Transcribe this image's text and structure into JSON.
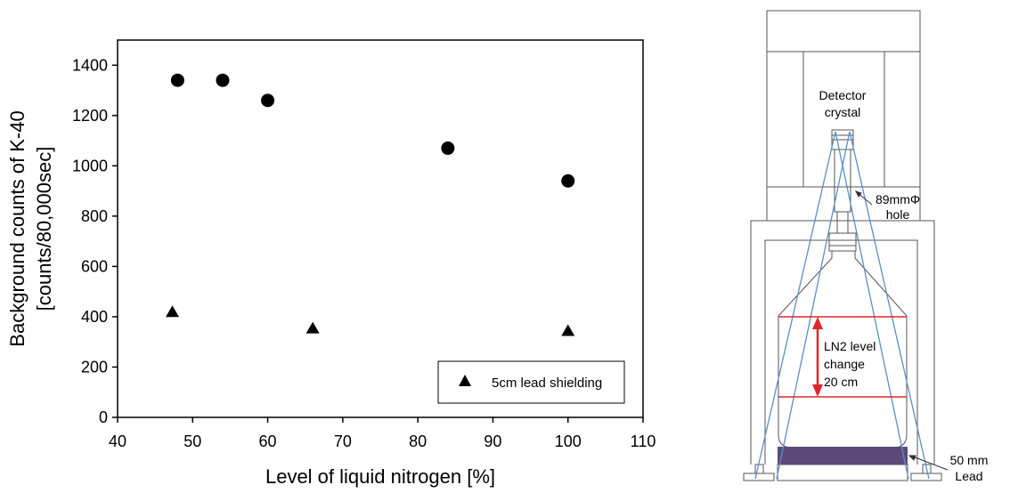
{
  "chart_data": {
    "type": "scatter",
    "xlabel": "Level of liquid nitrogen [%]",
    "ylabel_lines": [
      "Background counts of K-40",
      "[counts/80,000sec]"
    ],
    "xlim": [
      40,
      110
    ],
    "ylim": [
      0,
      1500
    ],
    "xticks": [
      40,
      50,
      60,
      70,
      80,
      90,
      100,
      110
    ],
    "yticks": [
      0,
      200,
      400,
      600,
      800,
      1000,
      1200,
      1400
    ],
    "grid": false,
    "legend_position": "bottom-right",
    "series": [
      {
        "marker": "circle",
        "x": [
          48,
          54,
          60,
          84,
          100
        ],
        "y": [
          1340,
          1340,
          1260,
          1070,
          940
        ]
      },
      {
        "name": "5cm lead shielding",
        "marker": "triangle",
        "x": [
          47.3,
          66,
          100
        ],
        "y": [
          420,
          355,
          345
        ]
      }
    ]
  },
  "diagram": {
    "detector_label_lines": [
      "Detector",
      "crystal"
    ],
    "hole_label_lines": [
      "89mmΦ",
      "hole"
    ],
    "ln2_label_lines": [
      "LN2 level",
      "change",
      "20 cm"
    ],
    "lead_label_lines": [
      "50 mm",
      "Lead"
    ],
    "colors": {
      "cone": "#5b8fc7",
      "level": "#e0262b",
      "lead": "#5b4a7a",
      "outline": "#555555"
    }
  }
}
